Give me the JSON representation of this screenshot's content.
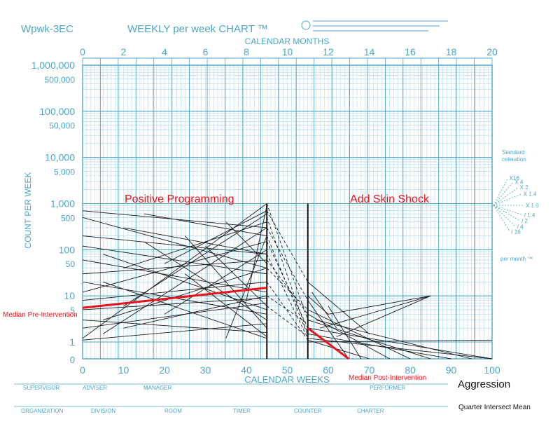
{
  "chart_data": {
    "type": "line",
    "form_code": "Wpwk-3EC",
    "title": "WEEKLY per week CHART ™",
    "top_axis_label": "CALENDAR MONTHS",
    "top_ticks": [
      "0",
      "2",
      "4",
      "6",
      "8",
      "10",
      "12",
      "14",
      "16",
      "18",
      "20"
    ],
    "xlabel": "CALENDAR WEEKS",
    "x_ticks": [
      "0",
      "10",
      "20",
      "30",
      "40",
      "50",
      "60",
      "70",
      "80",
      "90",
      "100"
    ],
    "xlim": [
      0,
      100
    ],
    "ylabel": "COUNT PER WEEK",
    "y_scale": "log",
    "ylim": [
      1,
      1000000
    ],
    "y_ticks": [
      {
        "value": 1000000,
        "label": "1,000,000"
      },
      {
        "value": 500000,
        "label": "500,000"
      },
      {
        "value": 100000,
        "label": "100,000"
      },
      {
        "value": 50000,
        "label": "50,000"
      },
      {
        "value": 10000,
        "label": "10,000"
      },
      {
        "value": 5000,
        "label": "5,000"
      },
      {
        "value": 1000,
        "label": "1,000"
      },
      {
        "value": 500,
        "label": "500"
      },
      {
        "value": 100,
        "label": "100"
      },
      {
        "value": 50,
        "label": "50"
      },
      {
        "value": 10,
        "label": "10"
      },
      {
        "value": 5,
        "label": "5"
      },
      {
        "value": 1,
        "label": "1"
      }
    ],
    "zero_label": "0",
    "grid": true,
    "phase_labels": [
      "Positive Programming",
      "Add Skin Shock"
    ],
    "phase_lines": [
      45,
      55
    ],
    "annotations": {
      "median_pre": "Median Pre-Intervention",
      "median_post": "Median Post-Intervention",
      "behavior": "Aggression",
      "method": "Quarter Intersect Mean"
    },
    "median_pre_line": {
      "x": [
        0,
        45
      ],
      "y": [
        5.5,
        15
      ]
    },
    "median_post_line": {
      "x": [
        55,
        65
      ],
      "y": [
        2,
        0
      ]
    },
    "celeration_fan": {
      "title": [
        "Standard",
        "celeration"
      ],
      "labels": [
        "X16",
        "X 4",
        "X 2",
        "X 1.4",
        "X 1.0",
        "/ 1.4",
        "/ 2",
        "/ 4",
        "/ 16"
      ],
      "footer": "per month ™"
    },
    "form_footer": [
      "SUPERVISOR",
      "ADVISER",
      "MANAGER",
      "PERFORMER",
      "ORGANIZATION",
      "DIVISION",
      "ROOM",
      "TIMER",
      "COUNTER",
      "CHARTER"
    ],
    "series_pre": [
      [
        [
          0,
          700
        ],
        [
          45,
          300
        ]
      ],
      [
        [
          0,
          500
        ],
        [
          45,
          40
        ]
      ],
      [
        [
          0,
          200
        ],
        [
          45,
          80
        ]
      ],
      [
        [
          0,
          120
        ],
        [
          45,
          30
        ]
      ],
      [
        [
          0,
          60
        ],
        [
          45,
          12
        ]
      ],
      [
        [
          0,
          30
        ],
        [
          45,
          60
        ]
      ],
      [
        [
          0,
          20
        ],
        [
          45,
          4
        ]
      ],
      [
        [
          0,
          12
        ],
        [
          45,
          150
        ]
      ],
      [
        [
          0,
          8
        ],
        [
          45,
          20
        ]
      ],
      [
        [
          0,
          5
        ],
        [
          45,
          9
        ]
      ],
      [
        [
          0,
          3
        ],
        [
          45,
          1.6
        ]
      ],
      [
        [
          0,
          2
        ],
        [
          45,
          7
        ]
      ],
      [
        [
          0,
          1.2
        ],
        [
          45,
          1000
        ]
      ],
      [
        [
          0,
          1.1
        ],
        [
          45,
          2.5
        ]
      ],
      [
        [
          5,
          80
        ],
        [
          45,
          5
        ]
      ],
      [
        [
          5,
          20
        ],
        [
          45,
          1.2
        ]
      ],
      [
        [
          5,
          3
        ],
        [
          45,
          40
        ]
      ],
      [
        [
          5,
          1.5
        ],
        [
          45,
          300
        ]
      ],
      [
        [
          10,
          300
        ],
        [
          45,
          80
        ]
      ],
      [
        [
          10,
          40
        ],
        [
          45,
          400
        ]
      ],
      [
        [
          10,
          6
        ],
        [
          45,
          600
        ]
      ],
      [
        [
          10,
          2
        ],
        [
          45,
          10
        ]
      ],
      [
        [
          15,
          600
        ],
        [
          45,
          200
        ]
      ],
      [
        [
          15,
          150
        ],
        [
          45,
          3
        ]
      ],
      [
        [
          20,
          50
        ],
        [
          45,
          700
        ]
      ],
      [
        [
          20,
          4
        ],
        [
          45,
          100
        ]
      ],
      [
        [
          25,
          200
        ],
        [
          45,
          2
        ]
      ],
      [
        [
          25,
          30
        ],
        [
          45,
          1.3
        ]
      ],
      [
        [
          30,
          120
        ],
        [
          45,
          6
        ]
      ],
      [
        [
          35,
          400
        ],
        [
          45,
          50
        ]
      ],
      [
        [
          35,
          1.2
        ],
        [
          45,
          200
        ]
      ],
      [
        [
          40,
          8
        ],
        [
          45,
          900
        ]
      ]
    ],
    "series_transition": [
      [
        [
          45,
          1000
        ],
        [
          55,
          3
        ]
      ],
      [
        [
          45,
          500
        ],
        [
          55,
          1.5
        ]
      ],
      [
        [
          45,
          300
        ],
        [
          55,
          8
        ]
      ],
      [
        [
          45,
          150
        ],
        [
          55,
          2
        ]
      ],
      [
        [
          45,
          80
        ],
        [
          55,
          1.2
        ]
      ],
      [
        [
          45,
          40
        ],
        [
          55,
          5
        ]
      ],
      [
        [
          45,
          20
        ],
        [
          55,
          1.1
        ]
      ],
      [
        [
          45,
          10
        ],
        [
          55,
          2.5
        ]
      ],
      [
        [
          45,
          6
        ],
        [
          55,
          1.3
        ]
      ],
      [
        [
          45,
          700
        ],
        [
          55,
          20
        ]
      ],
      [
        [
          45,
          200
        ],
        [
          55,
          1.4
        ]
      ],
      [
        [
          45,
          60
        ],
        [
          55,
          4
        ]
      ]
    ],
    "series_post": [
      [
        [
          55,
          20
        ],
        [
          70,
          1.5
        ]
      ],
      [
        [
          55,
          8
        ],
        [
          65,
          0
        ]
      ],
      [
        [
          55,
          5
        ],
        [
          80,
          0
        ]
      ],
      [
        [
          55,
          3
        ],
        [
          85,
          0
        ]
      ],
      [
        [
          55,
          2
        ],
        [
          100,
          0
        ]
      ],
      [
        [
          55,
          1.5
        ],
        [
          90,
          0
        ]
      ],
      [
        [
          55,
          1.2
        ],
        [
          100,
          0
        ]
      ],
      [
        [
          55,
          4
        ],
        [
          75,
          0
        ]
      ],
      [
        [
          55,
          10
        ],
        [
          60,
          4
        ]
      ],
      [
        [
          60,
          4
        ],
        [
          85,
          10
        ]
      ],
      [
        [
          58,
          2
        ],
        [
          85,
          10
        ]
      ],
      [
        [
          62,
          1.3
        ],
        [
          85,
          10
        ]
      ],
      [
        [
          55,
          1
        ],
        [
          100,
          1.1
        ]
      ],
      [
        [
          60,
          6
        ],
        [
          68,
          0
        ]
      ],
      [
        [
          56,
          12
        ],
        [
          62,
          2
        ]
      ],
      [
        [
          57,
          3
        ],
        [
          95,
          0
        ]
      ],
      [
        [
          55,
          1.1
        ],
        [
          70,
          0
        ]
      ]
    ]
  }
}
